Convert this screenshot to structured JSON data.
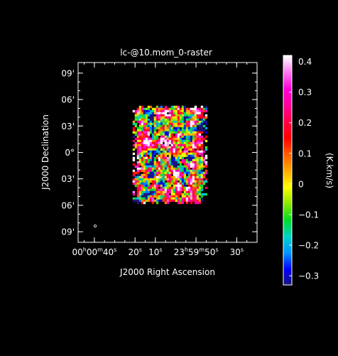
{
  "chart_data": {
    "type": "heatmap",
    "title": "lc-@10.mom_0-raster",
    "xlabel": "J2000 Right Ascension",
    "ylabel": "J2000 Declination",
    "x_ticks": [
      {
        "value": 40,
        "hms": "00h00m40s",
        "h": "00",
        "m": "00",
        "s": "40",
        "parts": [
          "00",
          "h",
          "00",
          "m",
          "40",
          "s"
        ]
      },
      {
        "value": 20,
        "label": "20",
        "unit": "s"
      },
      {
        "value": 10,
        "label": "10",
        "unit": "s"
      },
      {
        "value": -10,
        "hms": "23h59m50s",
        "parts": [
          "23",
          "h",
          "59",
          "m",
          "50",
          "s"
        ]
      },
      {
        "value": -30,
        "label": "30",
        "unit": "s"
      }
    ],
    "x_range": [
      48,
      -40
    ],
    "y_ticks": [
      {
        "value": 9,
        "label": "09'"
      },
      {
        "value": 6,
        "label": "06'"
      },
      {
        "value": 3,
        "label": "03'"
      },
      {
        "value": 0,
        "label": "0°"
      },
      {
        "value": -3,
        "label": "03'"
      },
      {
        "value": -6,
        "label": "06'"
      },
      {
        "value": -9,
        "label": "09'"
      }
    ],
    "y_range": [
      -10.2,
      10.2
    ],
    "data_extent": {
      "ra": [
        21.2,
        -16.5
      ],
      "dec": [
        -6.0,
        5.3
      ]
    },
    "colorbar": {
      "label": "(K.km/s)",
      "range": [
        -0.33,
        0.42
      ],
      "ticks": [
        {
          "value": 0.4,
          "label": "0.4"
        },
        {
          "value": 0.3,
          "label": "0.3"
        },
        {
          "value": 0.2,
          "label": "0.2"
        },
        {
          "value": 0.1,
          "label": "0.1"
        },
        {
          "value": 0.0,
          "label": "0"
        },
        {
          "value": -0.1,
          "label": "−0.1"
        },
        {
          "value": -0.2,
          "label": "−0.2"
        },
        {
          "value": -0.3,
          "label": "−0.3"
        }
      ],
      "colormap": [
        "#1e1478",
        "#0000ff",
        "#0096ff",
        "#00d2c8",
        "#00dc28",
        "#8ce600",
        "#ffff00",
        "#ffaa00",
        "#ff5a00",
        "#ff0000",
        "#ff0046",
        "#ff009b",
        "#ff00d2",
        "#ff78f0",
        "#ffffff"
      ]
    },
    "grid": false,
    "beam_marker": true
  }
}
